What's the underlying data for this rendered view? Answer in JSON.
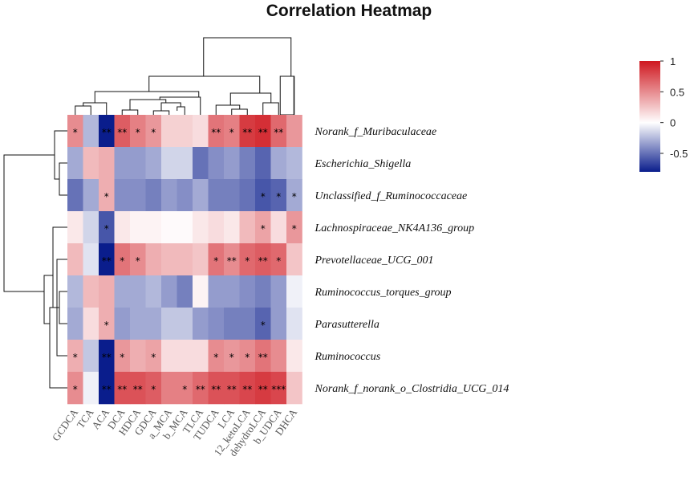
{
  "chart_data": {
    "type": "heatmap",
    "title": "Correlation Heatmap",
    "rows": [
      "Norank_f_Muribaculaceae",
      "Escherichia_Shigella",
      "Unclassified_f_Ruminococcaceae",
      "Lachnospiraceae_NK4A136_group",
      "Prevotellaceae_UCG_001",
      "Ruminococcus_torques_group",
      "Parasutterella",
      "Ruminococcus",
      "Norank_f_norank_o_Clostridia_UCG_014"
    ],
    "columns": [
      "GCDCA",
      "TCA",
      "ACA",
      "DCA",
      "HDCA",
      "GDCA",
      "a_MCA",
      "b_MCA",
      "TLCA",
      "TUDCA",
      "LCA",
      "12_ketoLCA",
      "dehydroLCA",
      "b_UDCA",
      "DHCA"
    ],
    "values": [
      [
        0.5,
        -0.25,
        -0.95,
        0.7,
        0.55,
        0.45,
        0.2,
        0.2,
        0.15,
        0.6,
        0.55,
        0.85,
        0.9,
        0.65,
        0.45
      ],
      [
        -0.3,
        0.3,
        0.35,
        -0.35,
        -0.35,
        -0.3,
        -0.15,
        -0.15,
        -0.5,
        -0.4,
        -0.35,
        -0.45,
        -0.55,
        -0.3,
        -0.25
      ],
      [
        -0.5,
        -0.3,
        0.35,
        -0.4,
        -0.4,
        -0.45,
        -0.35,
        -0.4,
        -0.3,
        -0.45,
        -0.45,
        -0.5,
        -0.6,
        -0.55,
        -0.3
      ],
      [
        0.1,
        -0.15,
        -0.6,
        0.1,
        0.05,
        0.05,
        0.02,
        0.02,
        0.1,
        0.15,
        0.1,
        0.3,
        0.4,
        0.15,
        0.45
      ],
      [
        0.3,
        -0.1,
        -0.9,
        0.6,
        0.5,
        0.35,
        0.3,
        0.3,
        0.25,
        0.6,
        0.5,
        0.65,
        0.7,
        0.65,
        0.25
      ],
      [
        -0.25,
        0.3,
        0.35,
        -0.3,
        -0.3,
        -0.25,
        -0.35,
        -0.45,
        0.05,
        -0.35,
        -0.35,
        -0.4,
        -0.45,
        -0.35,
        -0.05
      ],
      [
        -0.3,
        0.15,
        0.35,
        -0.35,
        -0.3,
        -0.3,
        -0.2,
        -0.2,
        -0.35,
        -0.4,
        -0.45,
        -0.45,
        -0.55,
        -0.35,
        -0.1
      ],
      [
        0.35,
        -0.2,
        -0.8,
        0.45,
        0.35,
        0.4,
        0.15,
        0.15,
        0.15,
        0.5,
        0.45,
        0.5,
        0.6,
        0.5,
        0.1
      ],
      [
        0.5,
        -0.05,
        -0.95,
        0.75,
        0.75,
        0.7,
        0.55,
        0.55,
        0.65,
        0.75,
        0.75,
        0.8,
        0.85,
        0.8,
        0.25
      ]
    ],
    "significance": [
      [
        "*",
        "",
        "**",
        "**",
        "*",
        "*",
        "",
        "",
        "",
        "**",
        "*",
        "**",
        "**",
        "**",
        ""
      ],
      [
        "",
        "",
        "",
        "",
        "",
        "",
        "",
        "",
        "",
        "",
        "",
        "",
        "",
        "",
        ""
      ],
      [
        "",
        "",
        "*",
        "",
        "",
        "",
        "",
        "",
        "",
        "",
        "",
        "",
        "*",
        "*",
        "*"
      ],
      [
        "",
        "",
        "*",
        "",
        "",
        "",
        "",
        "",
        "",
        "",
        "",
        "",
        "*",
        "",
        "*"
      ],
      [
        "",
        "",
        "**",
        "*",
        "*",
        "",
        "",
        "",
        "",
        "*",
        "**",
        "*",
        "**",
        "*",
        ""
      ],
      [
        "",
        "",
        "",
        "",
        "",
        "",
        "",
        "",
        "",
        "",
        "",
        "",
        "",
        "",
        ""
      ],
      [
        "",
        "",
        "*",
        "",
        "",
        "",
        "",
        "",
        "",
        "",
        "",
        "",
        "*",
        "",
        ""
      ],
      [
        "*",
        "",
        "**",
        "*",
        "",
        "*",
        "",
        "",
        "",
        "*",
        "*",
        "*",
        "**",
        "",
        ""
      ],
      [
        "*",
        "",
        "**",
        "**",
        "**",
        "*",
        "",
        "*",
        "**",
        "**",
        "**",
        "**",
        "**",
        "***",
        ""
      ]
    ],
    "colorbar": {
      "min": -0.8,
      "max": 1,
      "ticks": [
        1,
        0.5,
        0,
        -0.5
      ],
      "tick_labels": [
        "1",
        "0.5",
        "0",
        "-0.5"
      ],
      "colors": {
        "negative": "#0a1d8c",
        "zero": "#ffffff",
        "positive": "#cf1820"
      }
    },
    "legend": "top-right"
  }
}
